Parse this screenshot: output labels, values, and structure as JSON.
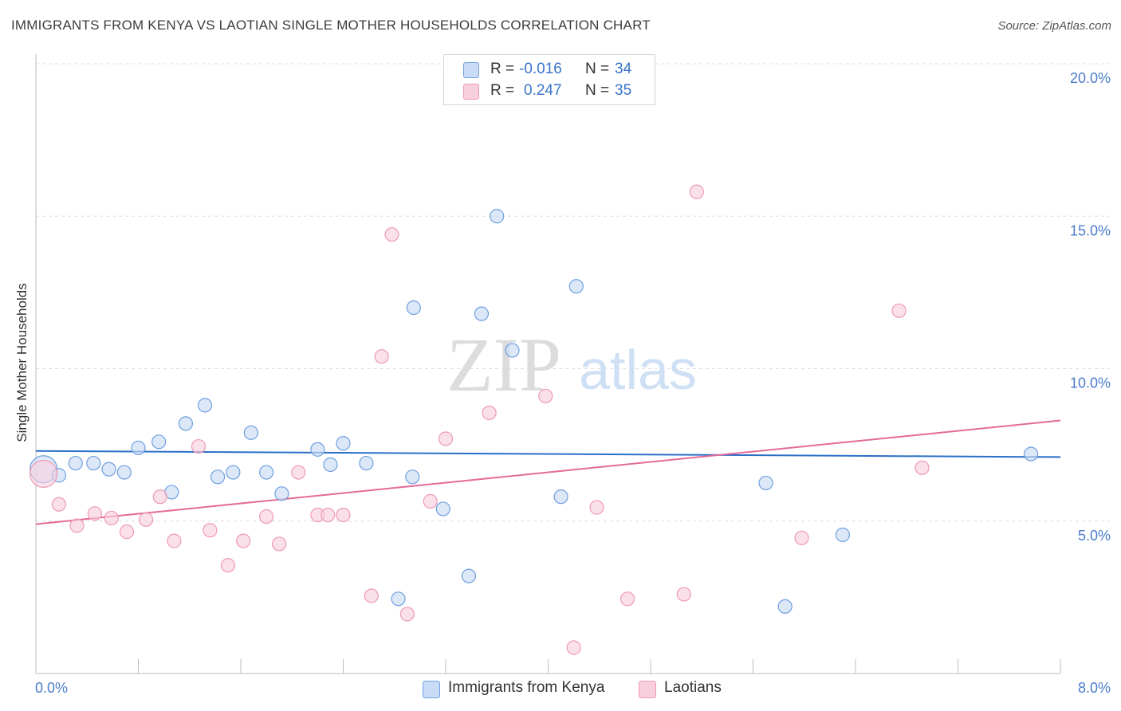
{
  "title": "IMMIGRANTS FROM KENYA VS LAOTIAN SINGLE MOTHER HOUSEHOLDS CORRELATION CHART",
  "source": "Source: ZipAtlas.com",
  "watermark": {
    "zip": "ZIP",
    "atlas": "atlas"
  },
  "legend": {
    "rows": [
      {
        "r_label": "R =",
        "r_value": "-0.016",
        "n_label": "N =",
        "n_value": "34",
        "color": "#a9c8f0"
      },
      {
        "r_label": "R =",
        "r_value": "0.247",
        "n_label": "N =",
        "n_value": "35",
        "color": "#f6b8cb"
      }
    ]
  },
  "bottom_legend": [
    {
      "label": "Immigrants from Kenya",
      "color": "#a9c8f0"
    },
    {
      "label": "Laotians",
      "color": "#f6b8cb"
    }
  ],
  "chart_data": {
    "type": "scatter",
    "ylabel": "Single Mother Households",
    "xlim": [
      0,
      8
    ],
    "ylim": [
      0,
      20
    ],
    "x_tick_labels": [
      {
        "value": 0,
        "label": "0.0%"
      },
      {
        "value": 8,
        "label": "8.0%"
      }
    ],
    "y_tick_labels": [
      {
        "value": 5,
        "label": "5.0%"
      },
      {
        "value": 10,
        "label": "10.0%"
      },
      {
        "value": 15,
        "label": "15.0%"
      },
      {
        "value": 20,
        "label": "20.0%"
      }
    ],
    "grid": "horizontal-dashed",
    "series": [
      {
        "name": "Immigrants from Kenya",
        "color": "#6f9fe0",
        "fill": "#c9dcf5",
        "trend_color": "#2a6fc9",
        "trend": {
          "x": [
            0,
            8
          ],
          "y": [
            7.3,
            7.1
          ]
        },
        "points": [
          {
            "x": 0.06,
            "y": 6.7,
            "big": true
          },
          {
            "x": 0.18,
            "y": 6.5
          },
          {
            "x": 0.31,
            "y": 6.9
          },
          {
            "x": 0.45,
            "y": 6.9
          },
          {
            "x": 0.57,
            "y": 6.7
          },
          {
            "x": 0.69,
            "y": 6.6
          },
          {
            "x": 0.8,
            "y": 7.4
          },
          {
            "x": 0.96,
            "y": 7.6
          },
          {
            "x": 1.06,
            "y": 5.95
          },
          {
            "x": 1.17,
            "y": 8.2
          },
          {
            "x": 1.32,
            "y": 8.8
          },
          {
            "x": 1.42,
            "y": 6.45
          },
          {
            "x": 1.54,
            "y": 6.6
          },
          {
            "x": 1.68,
            "y": 7.9
          },
          {
            "x": 1.8,
            "y": 6.6
          },
          {
            "x": 1.92,
            "y": 5.9
          },
          {
            "x": 2.2,
            "y": 7.35
          },
          {
            "x": 2.3,
            "y": 6.85
          },
          {
            "x": 2.4,
            "y": 7.55
          },
          {
            "x": 2.58,
            "y": 6.9
          },
          {
            "x": 2.83,
            "y": 2.45
          },
          {
            "x": 2.94,
            "y": 6.45
          },
          {
            "x": 2.95,
            "y": 12.0
          },
          {
            "x": 3.18,
            "y": 5.4
          },
          {
            "x": 3.38,
            "y": 3.2
          },
          {
            "x": 3.48,
            "y": 11.8
          },
          {
            "x": 3.6,
            "y": 15.0
          },
          {
            "x": 3.72,
            "y": 10.6
          },
          {
            "x": 4.1,
            "y": 5.8
          },
          {
            "x": 4.22,
            "y": 12.7
          },
          {
            "x": 5.7,
            "y": 6.25
          },
          {
            "x": 5.85,
            "y": 2.2
          },
          {
            "x": 6.3,
            "y": 4.55
          },
          {
            "x": 7.77,
            "y": 7.2
          }
        ]
      },
      {
        "name": "Laotians",
        "color": "#ee9ab5",
        "fill": "#f8cfdc",
        "trend_color": "#e46a97",
        "trend": {
          "x": [
            0,
            8
          ],
          "y": [
            4.9,
            8.3
          ]
        },
        "points": [
          {
            "x": 0.06,
            "y": 6.55,
            "big": true
          },
          {
            "x": 0.18,
            "y": 5.55
          },
          {
            "x": 0.32,
            "y": 4.85
          },
          {
            "x": 0.46,
            "y": 5.25
          },
          {
            "x": 0.59,
            "y": 5.1
          },
          {
            "x": 0.71,
            "y": 4.65
          },
          {
            "x": 0.86,
            "y": 5.05
          },
          {
            "x": 0.97,
            "y": 5.8
          },
          {
            "x": 1.08,
            "y": 4.35
          },
          {
            "x": 1.27,
            "y": 7.45
          },
          {
            "x": 1.36,
            "y": 4.7
          },
          {
            "x": 1.5,
            "y": 3.55
          },
          {
            "x": 1.62,
            "y": 4.35
          },
          {
            "x": 1.8,
            "y": 5.15
          },
          {
            "x": 1.9,
            "y": 4.25
          },
          {
            "x": 2.05,
            "y": 6.6
          },
          {
            "x": 2.2,
            "y": 5.2
          },
          {
            "x": 2.28,
            "y": 5.2
          },
          {
            "x": 2.4,
            "y": 5.2
          },
          {
            "x": 2.62,
            "y": 2.55
          },
          {
            "x": 2.7,
            "y": 10.4
          },
          {
            "x": 2.78,
            "y": 14.4
          },
          {
            "x": 2.9,
            "y": 1.95
          },
          {
            "x": 3.08,
            "y": 5.65
          },
          {
            "x": 3.2,
            "y": 7.7
          },
          {
            "x": 3.54,
            "y": 8.55
          },
          {
            "x": 3.98,
            "y": 9.1
          },
          {
            "x": 4.2,
            "y": 0.85
          },
          {
            "x": 4.38,
            "y": 5.45
          },
          {
            "x": 4.62,
            "y": 2.45
          },
          {
            "x": 5.06,
            "y": 2.6
          },
          {
            "x": 5.16,
            "y": 15.8
          },
          {
            "x": 5.98,
            "y": 4.45
          },
          {
            "x": 6.74,
            "y": 11.9
          },
          {
            "x": 6.92,
            "y": 6.75
          }
        ]
      }
    ]
  }
}
